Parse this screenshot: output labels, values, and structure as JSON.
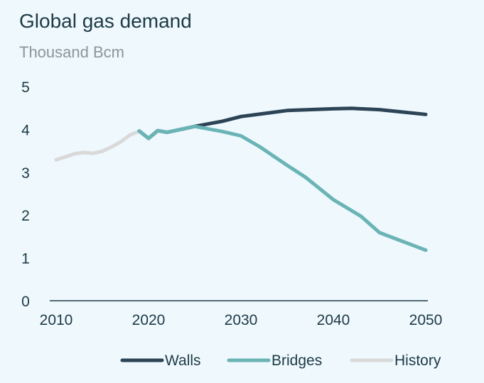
{
  "chart_data": {
    "type": "line",
    "title": "Global gas demand",
    "subtitle": "Thousand Bcm",
    "xlabel": "",
    "ylabel": "",
    "xlim": [
      2010,
      2050
    ],
    "ylim": [
      0,
      5
    ],
    "x_ticks": [
      "2010",
      "2020",
      "2030",
      "2040",
      "2050"
    ],
    "y_ticks": [
      "0",
      "1",
      "2",
      "3",
      "4",
      "5"
    ],
    "grid": false,
    "legend_position": "bottom",
    "series": [
      {
        "name": "Walls",
        "color": "#2c4456",
        "x": [
          2019,
          2020,
          2021,
          2022,
          2025,
          2028,
          2030,
          2035,
          2040,
          2042,
          2045,
          2050
        ],
        "y": [
          3.96,
          3.79,
          3.97,
          3.93,
          4.07,
          4.19,
          4.3,
          4.44,
          4.48,
          4.49,
          4.46,
          4.35
        ]
      },
      {
        "name": "Bridges",
        "color": "#6ab4b6",
        "x": [
          2019,
          2020,
          2021,
          2022,
          2025,
          2028,
          2030,
          2032,
          2035,
          2037,
          2040,
          2043,
          2045,
          2050
        ],
        "y": [
          3.96,
          3.79,
          3.97,
          3.93,
          4.07,
          3.95,
          3.85,
          3.6,
          3.16,
          2.88,
          2.36,
          1.97,
          1.59,
          1.18
        ]
      },
      {
        "name": "History",
        "color": "#d9d9d9",
        "x": [
          2010,
          2011,
          2012,
          2013,
          2014,
          2015,
          2016,
          2017,
          2018,
          2019
        ],
        "y": [
          3.29,
          3.36,
          3.43,
          3.46,
          3.44,
          3.49,
          3.59,
          3.71,
          3.87,
          3.96
        ]
      }
    ]
  }
}
